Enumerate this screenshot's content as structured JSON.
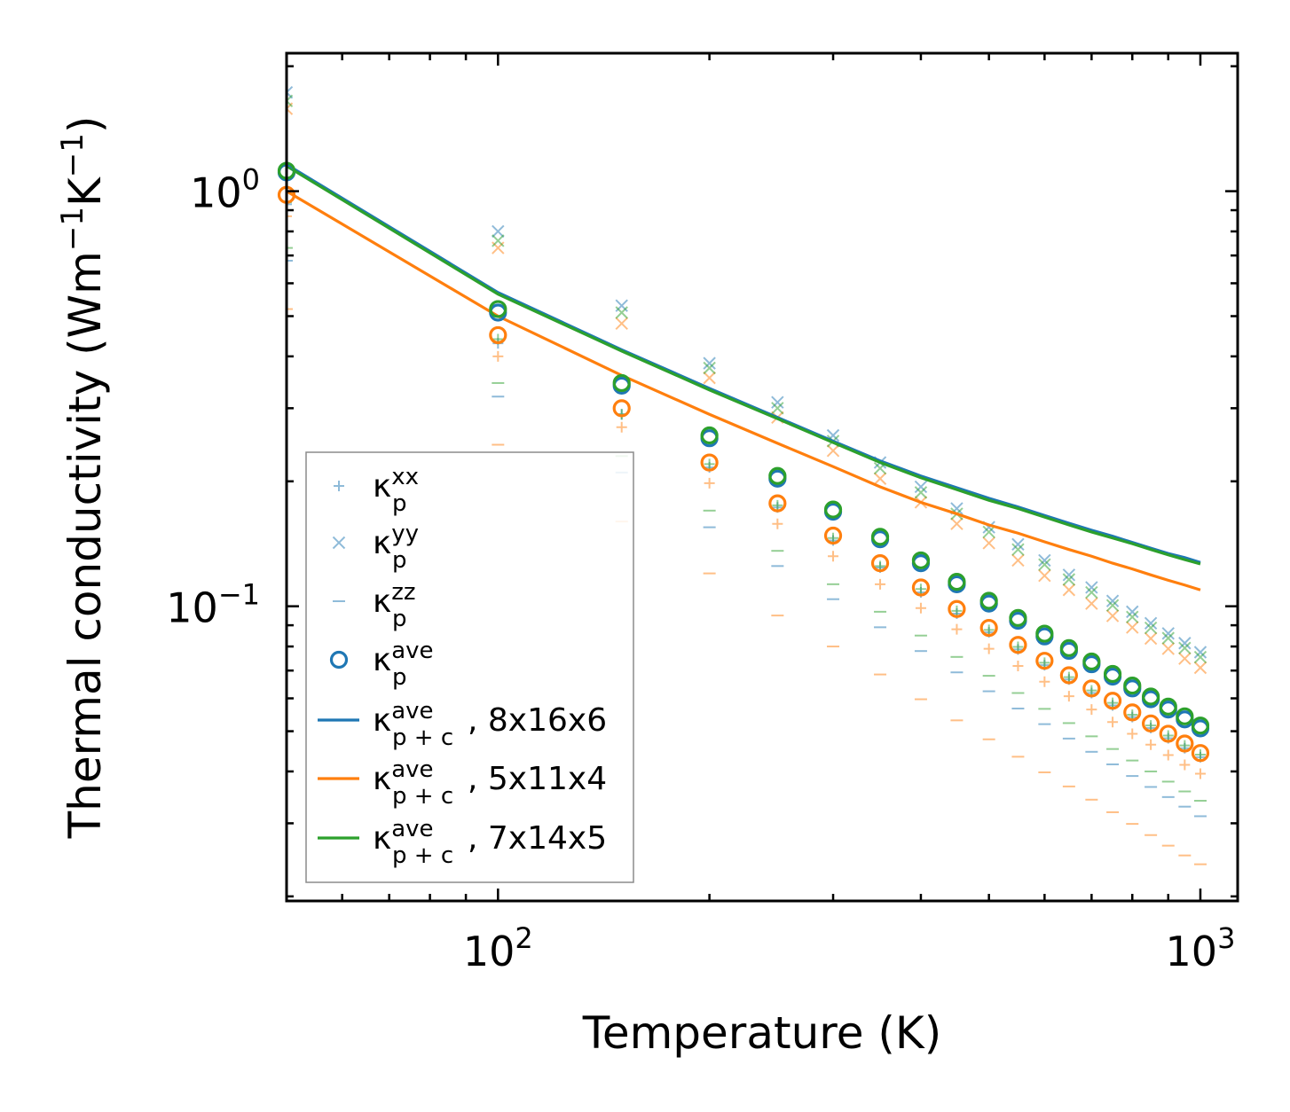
{
  "chart_data": {
    "type": "scatter",
    "xscale": "log",
    "yscale": "log",
    "xlabel": "Temperature (K)",
    "ylabel": {
      "prefix": "Thermal conductivity (Wm",
      "exp1": "−1",
      "mid": "K",
      "exp2": "−1",
      "suffix": ")"
    },
    "xlim": [
      50,
      1130
    ],
    "ylim": [
      0.0195,
      2.15
    ],
    "x_ticks": [
      {
        "value": 100,
        "base": "10",
        "exp": "2"
      },
      {
        "value": 1000,
        "base": "10",
        "exp": "3"
      }
    ],
    "y_ticks": [
      {
        "value": 0.1,
        "base": "10",
        "exp": "−1"
      },
      {
        "value": 1,
        "base": "10",
        "exp": "0"
      }
    ],
    "legend_position": "lower-left",
    "legend": [
      {
        "key": "kxx",
        "symbol": "plus",
        "color": "#1f77b4",
        "alpha": 0.5,
        "base": "κ",
        "sub": "p",
        "sup": "xx",
        "suffix": ""
      },
      {
        "key": "kyy",
        "symbol": "x",
        "color": "#1f77b4",
        "alpha": 0.5,
        "base": "κ",
        "sub": "p",
        "sup": "yy",
        "suffix": ""
      },
      {
        "key": "kzz",
        "symbol": "dash",
        "color": "#1f77b4",
        "alpha": 0.5,
        "base": "κ",
        "sub": "p",
        "sup": "zz",
        "suffix": ""
      },
      {
        "key": "kave",
        "symbol": "circle",
        "color": "#1f77b4",
        "alpha": 1,
        "base": "κ",
        "sub": "p",
        "sup": "ave",
        "suffix": ""
      },
      {
        "key": "line_8x16x6",
        "symbol": "line",
        "color": "#1f77b4",
        "alpha": 1,
        "base": "κ",
        "sub": "p + c",
        "sup": "ave",
        "suffix": ", 8x16x6"
      },
      {
        "key": "line_5x11x4",
        "symbol": "line",
        "color": "#ff7f0e",
        "alpha": 1,
        "base": "κ",
        "sub": "p + c",
        "sup": "ave",
        "suffix": ", 5x11x4"
      },
      {
        "key": "line_7x14x5",
        "symbol": "line",
        "color": "#2ca02c",
        "alpha": 1,
        "base": "κ",
        "sub": "p + c",
        "sup": "ave",
        "suffix": ", 7x14x5"
      }
    ],
    "x": [
      50,
      100,
      150,
      200,
      250,
      300,
      350,
      400,
      450,
      500,
      550,
      600,
      650,
      700,
      750,
      800,
      850,
      900,
      950,
      1000
    ],
    "series": [
      {
        "name": "8x16x6",
        "color": "#1f77b4",
        "kxx": [
          0.93,
          0.43,
          0.29,
          0.216,
          0.173,
          0.144,
          0.124,
          0.108,
          0.096,
          0.0865,
          0.0787,
          0.0721,
          0.0666,
          0.0618,
          0.0577,
          0.0541,
          0.0509,
          0.0481,
          0.0455,
          0.0433
        ],
        "kyy": [
          1.73,
          0.8,
          0.53,
          0.385,
          0.31,
          0.258,
          0.222,
          0.194,
          0.172,
          0.155,
          0.141,
          0.129,
          0.119,
          0.111,
          0.103,
          0.097,
          0.091,
          0.086,
          0.0815,
          0.0775
        ],
        "kzz": [
          0.68,
          0.32,
          0.21,
          0.155,
          0.125,
          0.104,
          0.089,
          0.078,
          0.0693,
          0.0624,
          0.0567,
          0.052,
          0.048,
          0.0446,
          0.0416,
          0.039,
          0.0367,
          0.0347,
          0.0329,
          0.0312
        ],
        "kave": [
          1.11,
          0.51,
          0.34,
          0.254,
          0.203,
          0.169,
          0.145,
          0.127,
          0.113,
          0.1015,
          0.0923,
          0.0846,
          0.0781,
          0.0725,
          0.0677,
          0.0634,
          0.0597,
          0.0564,
          0.0534,
          0.0508
        ],
        "kline": [
          1.16,
          0.57,
          0.415,
          0.335,
          0.285,
          0.25,
          0.224,
          0.206,
          0.193,
          0.182,
          0.1735,
          0.1655,
          0.1585,
          0.1525,
          0.1475,
          0.1425,
          0.138,
          0.134,
          0.131,
          0.1275
        ]
      },
      {
        "name": "5x11x4",
        "color": "#ff7f0e",
        "kxx": [
          0.87,
          0.4,
          0.27,
          0.198,
          0.158,
          0.132,
          0.113,
          0.099,
          0.088,
          0.079,
          0.0718,
          0.0658,
          0.0607,
          0.0564,
          0.0526,
          0.0493,
          0.0464,
          0.0438,
          0.0415,
          0.0395
        ],
        "kyy": [
          1.58,
          0.73,
          0.48,
          0.355,
          0.285,
          0.237,
          0.203,
          0.178,
          0.158,
          0.142,
          0.129,
          0.1185,
          0.1095,
          0.1015,
          0.0948,
          0.0889,
          0.0836,
          0.079,
          0.0748,
          0.0711
        ],
        "kzz": [
          0.52,
          0.245,
          0.16,
          0.12,
          0.095,
          0.08,
          0.0685,
          0.0597,
          0.0531,
          0.0478,
          0.0434,
          0.0398,
          0.0368,
          0.0342,
          0.0319,
          0.0299,
          0.0281,
          0.0265,
          0.0251,
          0.0239
        ],
        "kave": [
          0.98,
          0.45,
          0.3,
          0.222,
          0.177,
          0.148,
          0.127,
          0.111,
          0.0985,
          0.0887,
          0.0807,
          0.0739,
          0.0682,
          0.0634,
          0.0592,
          0.0555,
          0.0522,
          0.0493,
          0.0467,
          0.0443
        ],
        "kline": [
          1.0,
          0.5,
          0.36,
          0.29,
          0.247,
          0.217,
          0.194,
          0.178,
          0.167,
          0.157,
          0.15,
          0.143,
          0.137,
          0.132,
          0.127,
          0.123,
          0.119,
          0.1155,
          0.1125,
          0.1095
        ]
      },
      {
        "name": "7x14x5",
        "color": "#2ca02c",
        "kxx": [
          0.94,
          0.44,
          0.29,
          0.22,
          0.175,
          0.146,
          0.125,
          0.11,
          0.0975,
          0.0877,
          0.0798,
          0.0731,
          0.0675,
          0.0627,
          0.0585,
          0.0548,
          0.0516,
          0.0488,
          0.0462,
          0.0439
        ],
        "kyy": [
          1.65,
          0.76,
          0.51,
          0.375,
          0.3,
          0.25,
          0.215,
          0.188,
          0.167,
          0.151,
          0.137,
          0.126,
          0.116,
          0.108,
          0.1005,
          0.0942,
          0.0887,
          0.0838,
          0.0793,
          0.0754
        ],
        "kzz": [
          0.73,
          0.345,
          0.23,
          0.17,
          0.136,
          0.113,
          0.097,
          0.085,
          0.0755,
          0.068,
          0.0618,
          0.0566,
          0.0523,
          0.0486,
          0.0453,
          0.0425,
          0.04,
          0.0378,
          0.0358,
          0.034
        ],
        "kave": [
          1.12,
          0.52,
          0.345,
          0.258,
          0.206,
          0.171,
          0.147,
          0.129,
          0.1145,
          0.1031,
          0.0937,
          0.0859,
          0.0793,
          0.0736,
          0.0687,
          0.0644,
          0.0606,
          0.0573,
          0.0543,
          0.0516
        ],
        "kline": [
          1.15,
          0.565,
          0.412,
          0.332,
          0.283,
          0.248,
          0.222,
          0.204,
          0.191,
          0.18,
          0.172,
          0.164,
          0.157,
          0.151,
          0.146,
          0.1415,
          0.137,
          0.133,
          0.1295,
          0.1265
        ]
      }
    ]
  }
}
